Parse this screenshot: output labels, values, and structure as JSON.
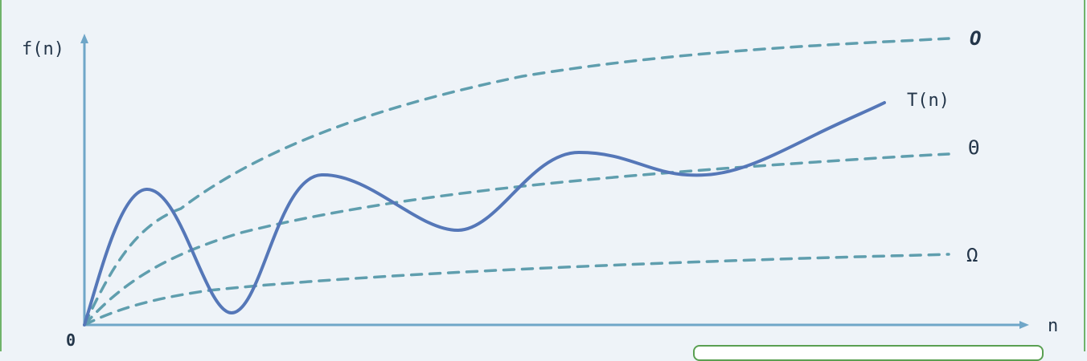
{
  "diagram": {
    "y_axis_label": "f(n)",
    "x_axis_label": "n",
    "origin_label": "0",
    "curves": {
      "upper_bound": {
        "label": "O",
        "style": "dashed"
      },
      "tight_bound": {
        "label": "Θ",
        "style": "dashed"
      },
      "lower_bound": {
        "label": "Ω",
        "style": "dashed"
      },
      "running_time": {
        "label": "T(n)",
        "style": "solid"
      }
    }
  },
  "credit": {
    "text": ""
  },
  "colors": {
    "background": "#eef3f8",
    "axis": "#6fa6c8",
    "bound_curves": "#5f9eae",
    "t_curve": "#5577b8",
    "label_text": "#24364a",
    "frame": "#6fb36a"
  }
}
